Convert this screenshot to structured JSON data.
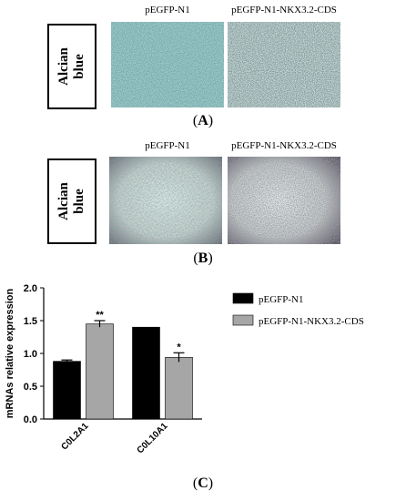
{
  "panels": {
    "a": {
      "letter": "A",
      "columns": [
        "pEGFP-N1",
        "pEGFP-N1-NKX3.2-CDS"
      ],
      "stain_label_line1": "Alcian",
      "stain_label_line2": "blue"
    },
    "b": {
      "letter": "B",
      "columns": [
        "pEGFP-N1",
        "pEGFP-N1-NKX3.2-CDS"
      ],
      "stain_label_line1": "Alcian",
      "stain_label_line2": "blue"
    },
    "c": {
      "letter": "C"
    }
  },
  "chart_data": {
    "type": "bar",
    "ylabel": "mRNAs relative expression",
    "ylim": [
      0,
      2.0
    ],
    "yticks": [
      "0.0",
      "0.5",
      "1.0",
      "1.5",
      "2.0"
    ],
    "categories": [
      "C0L2A1",
      "C0L10A1"
    ],
    "series": [
      {
        "name": "pEGFP-N1",
        "color": "#000000",
        "values": [
          0.88,
          1.4
        ],
        "errors": [
          0.02,
          0.0
        ]
      },
      {
        "name": "pEGFP-N1-NKX3.2-CDS",
        "color": "#a6a6a6",
        "values": [
          1.45,
          0.94
        ],
        "errors": [
          0.05,
          0.07
        ]
      }
    ],
    "significance": [
      {
        "category": "C0L2A1",
        "series": 1,
        "mark": "**"
      },
      {
        "category": "C0L10A1",
        "series": 1,
        "mark": "*"
      }
    ],
    "legend_position": "right"
  }
}
